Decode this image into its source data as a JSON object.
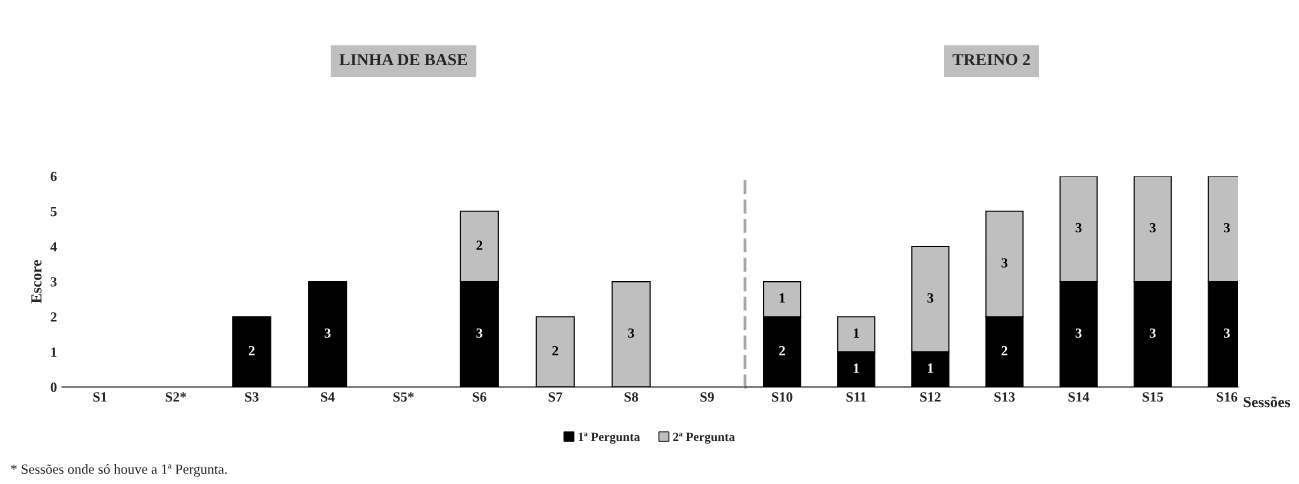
{
  "chart_data": [
    {
      "type": "bar",
      "title": "LINHA DE BASE",
      "ylabel": "Escore",
      "stacked": true,
      "categories": [
        "S1",
        "S2*",
        "S3",
        "S4",
        "S5*",
        "S6",
        "S7",
        "S8",
        "S9"
      ],
      "series": [
        {
          "name": "1ª Pergunta",
          "color": "#000000",
          "values": [
            0,
            0,
            2,
            3,
            0,
            3,
            0,
            0,
            0
          ],
          "value_labels": [
            null,
            null,
            "2",
            "3",
            null,
            "3",
            null,
            null,
            null
          ]
        },
        {
          "name": "2ª Pergunta",
          "color": "#bfbfbf",
          "values": [
            0,
            0,
            0,
            0,
            0,
            2,
            2,
            3,
            0
          ],
          "value_labels": [
            null,
            null,
            null,
            null,
            null,
            "2",
            "2",
            "3",
            null
          ]
        }
      ],
      "ylim": [
        0,
        6
      ],
      "yticks": [
        0,
        1,
        2,
        3,
        4,
        5,
        6
      ],
      "grid": false,
      "legend": "bottom",
      "annotations": [
        "* Sessões onde só houve a 1ª Pergunta."
      ]
    },
    {
      "type": "bar",
      "title": "TREINO 2",
      "xlabel": "Sessões",
      "stacked": true,
      "categories": [
        "S10",
        "S11",
        "S12",
        "S13",
        "S14",
        "S15",
        "S16"
      ],
      "series": [
        {
          "color": "#000000",
          "values": [
            2,
            1,
            1,
            2,
            3,
            3,
            3
          ],
          "value_labels": [
            "2",
            "1",
            "1",
            "2",
            "3",
            "3",
            "3"
          ]
        },
        {
          "color": "#bfbfbf",
          "values": [
            1,
            1,
            3,
            3,
            3,
            3,
            3
          ],
          "value_labels": [
            "1",
            "1",
            "3",
            "3",
            "3",
            "3",
            "3"
          ]
        }
      ],
      "ylim": [
        0,
        6
      ],
      "yticks": [
        0,
        1,
        2,
        3,
        4,
        5,
        6
      ],
      "grid": false,
      "tick_labels": "x"
    }
  ]
}
